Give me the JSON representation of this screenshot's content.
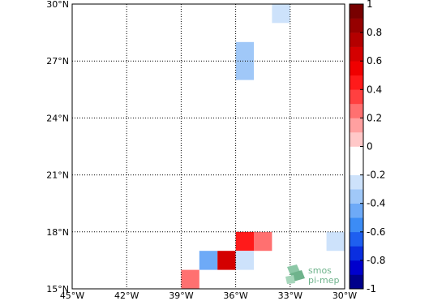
{
  "title": "",
  "map": {
    "lon_range": [
      -45,
      -30
    ],
    "lat_range": [
      15,
      30
    ],
    "lon_ticks": [
      {
        "value": -45,
        "label": "45°W"
      },
      {
        "value": -42,
        "label": "42°W"
      },
      {
        "value": -39,
        "label": "39°W"
      },
      {
        "value": -36,
        "label": "36°W"
      },
      {
        "value": -33,
        "label": "33°W"
      },
      {
        "value": -30,
        "label": "30°W"
      }
    ],
    "lat_ticks": [
      {
        "value": 15,
        "label": "15°N"
      },
      {
        "value": 18,
        "label": "18°N"
      },
      {
        "value": 21,
        "label": "21°N"
      },
      {
        "value": 24,
        "label": "24°N"
      },
      {
        "value": 27,
        "label": "27°N"
      },
      {
        "value": 30,
        "label": "30°N"
      }
    ],
    "grid": true,
    "cells": [
      {
        "lon0": -34,
        "lon1": -33,
        "lat0": 29,
        "lat1": 30,
        "value": -0.3
      },
      {
        "lon0": -34,
        "lon1": -33,
        "lat0": 28,
        "lat1": 29,
        "value": -0.1
      },
      {
        "lon0": -36,
        "lon1": -35,
        "lat0": 27,
        "lat1": 28,
        "value": -0.4
      },
      {
        "lon0": -35,
        "lon1": -34,
        "lat0": 27,
        "lat1": 28,
        "value": -0.2
      },
      {
        "lon0": -36,
        "lon1": -35,
        "lat0": 26,
        "lat1": 27,
        "value": -0.4
      },
      {
        "lon0": -38,
        "lon1": -37,
        "lat0": 24,
        "lat1": 26,
        "value": -0.1
      },
      {
        "lon0": -38,
        "lon1": -37,
        "lat0": 21,
        "lat1": 22,
        "value": -0.1
      },
      {
        "lon0": -38,
        "lon1": -37,
        "lat0": 19,
        "lat1": 20,
        "value": -0.1
      },
      {
        "lon0": -32,
        "lon1": -31,
        "lat0": 18,
        "lat1": 19,
        "value": -0.1
      },
      {
        "lon0": -44,
        "lon1": -42,
        "lat0": 17,
        "lat1": 18,
        "value": -0.1
      },
      {
        "lon0": -40,
        "lon1": -39,
        "lat0": 17,
        "lat1": 18,
        "value": -0.1
      },
      {
        "lon0": -39,
        "lon1": -38,
        "lat0": 17,
        "lat1": 18,
        "value": -0.1
      },
      {
        "lon0": -36,
        "lon1": -35,
        "lat0": 17,
        "lat1": 18,
        "value": 0.4
      },
      {
        "lon0": -35,
        "lon1": -34,
        "lat0": 17,
        "lat1": 18,
        "value": 0.2
      },
      {
        "lon0": -31,
        "lon1": -30,
        "lat0": 17,
        "lat1": 18,
        "value": -0.3
      },
      {
        "lon0": -38,
        "lon1": -37,
        "lat0": 16,
        "lat1": 17,
        "value": -0.5
      },
      {
        "lon0": -37,
        "lon1": -36,
        "lat0": 16,
        "lat1": 17,
        "value": 0.6
      },
      {
        "lon0": -36,
        "lon1": -35,
        "lat0": 16,
        "lat1": 17,
        "value": -0.3
      },
      {
        "lon0": -39,
        "lon1": -38,
        "lat0": 15,
        "lat1": 16,
        "value": 0.2
      }
    ]
  },
  "colorbar": {
    "min": -1,
    "max": 1,
    "ticks": [
      {
        "value": 1,
        "label": "1"
      },
      {
        "value": 0.8,
        "label": "0.8"
      },
      {
        "value": 0.6,
        "label": "0.6"
      },
      {
        "value": 0.4,
        "label": "0.4"
      },
      {
        "value": 0.2,
        "label": "0.2"
      },
      {
        "value": 0,
        "label": "0"
      },
      {
        "value": -0.2,
        "label": "-0.2"
      },
      {
        "value": -0.4,
        "label": "-0.4"
      },
      {
        "value": -0.6,
        "label": "-0.6"
      },
      {
        "value": -0.8,
        "label": "-0.8"
      },
      {
        "value": -1,
        "label": "-1"
      }
    ],
    "colors": [
      "#00008b",
      "#0000cd",
      "#0a2ee0",
      "#1e5ff0",
      "#3c8cf5",
      "#6eaaf7",
      "#a0c8f8",
      "#cde2fb",
      "#ffffff",
      "#ffffff",
      "#ffc8c8",
      "#ffa0a0",
      "#ff7070",
      "#ff4040",
      "#ff1a1a",
      "#f00000",
      "#d40000",
      "#b40000",
      "#960000",
      "#780000"
    ]
  },
  "logo": {
    "line1": "smos",
    "line2": "pi-mep",
    "color": "#6fb38c"
  }
}
